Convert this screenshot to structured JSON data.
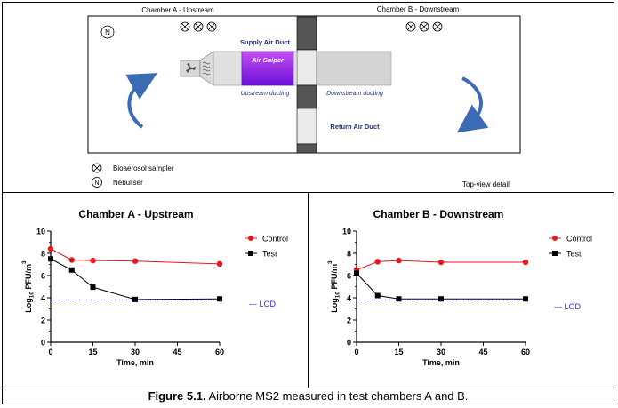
{
  "schematic": {
    "chamber_a_label": "Chamber A - Upstream",
    "chamber_b_label": "Chamber B - Downstream",
    "nebuliser_symbol": "N",
    "supply_duct_label": "Supply Air Duct",
    "air_sniper_label": "Air Sniper",
    "upstream_ducting_label": "Upstream ducting",
    "downstream_ducting_label": "Downstream ducting",
    "return_duct_label": "Return Air Duct",
    "legend_sampler_label": "Bioaerosol sampler",
    "legend_nebuliser_label": "Nebuliser",
    "view_label": "Top-view detail",
    "colors": {
      "air_sniper": "#8a1ee8",
      "arrow": "#3b6bb5",
      "duct_label": "#1f2f7a",
      "grey_duct": "#cfcfcf",
      "dark_duct": "#555555"
    }
  },
  "caption": {
    "figure_label": "Figure 5.1.",
    "text": " Airborne MS2 measured in test chambers A and B."
  },
  "chart_data": [
    {
      "type": "line",
      "title": "Chamber A - Upstream",
      "xlabel": "Time, min",
      "ylabel": "Log10 PFU/m3",
      "ylabel_main": "Log",
      "ylabel_sub": "10",
      "ylabel_rest": " PFU/m",
      "ylabel_sup": "3",
      "xlim": [
        0,
        60
      ],
      "ylim": [
        0,
        10
      ],
      "xticks": [
        0,
        15,
        30,
        45,
        60
      ],
      "yticks": [
        0,
        2,
        4,
        6,
        8,
        10
      ],
      "series": [
        {
          "name": "Control",
          "color": "#e8171f",
          "marker": "circle",
          "x": [
            0,
            7.5,
            15,
            30,
            60
          ],
          "y": [
            8.4,
            7.4,
            7.35,
            7.3,
            7.05
          ]
        },
        {
          "name": "Test",
          "color": "#000000",
          "marker": "square",
          "x": [
            0,
            7.5,
            15,
            30,
            60
          ],
          "y": [
            7.5,
            6.5,
            4.95,
            3.85,
            3.9
          ]
        }
      ],
      "lod": {
        "label": "--- LOD",
        "value": 3.8,
        "color": "#2b2bd8"
      }
    },
    {
      "type": "line",
      "title": "Chamber B - Downstream",
      "xlabel": "Time, min",
      "ylabel": "Log10 PFU/m3",
      "ylabel_main": "Log",
      "ylabel_sub": "10",
      "ylabel_rest": " PFU/m",
      "ylabel_sup": "3",
      "xlim": [
        0,
        60
      ],
      "ylim": [
        0,
        10
      ],
      "xticks": [
        0,
        15,
        30,
        45,
        60
      ],
      "yticks": [
        0,
        2,
        4,
        6,
        8,
        10
      ],
      "series": [
        {
          "name": "Control",
          "color": "#e8171f",
          "marker": "circle",
          "x": [
            0,
            7.5,
            15,
            30,
            60
          ],
          "y": [
            6.5,
            7.25,
            7.35,
            7.2,
            7.2
          ]
        },
        {
          "name": "Test",
          "color": "#000000",
          "marker": "square",
          "x": [
            0,
            7.5,
            15,
            30,
            60
          ],
          "y": [
            6.2,
            4.2,
            3.9,
            3.9,
            3.9
          ]
        }
      ],
      "lod": {
        "label": "--- LOD",
        "value": 3.8,
        "color": "#2b2bd8"
      }
    }
  ]
}
